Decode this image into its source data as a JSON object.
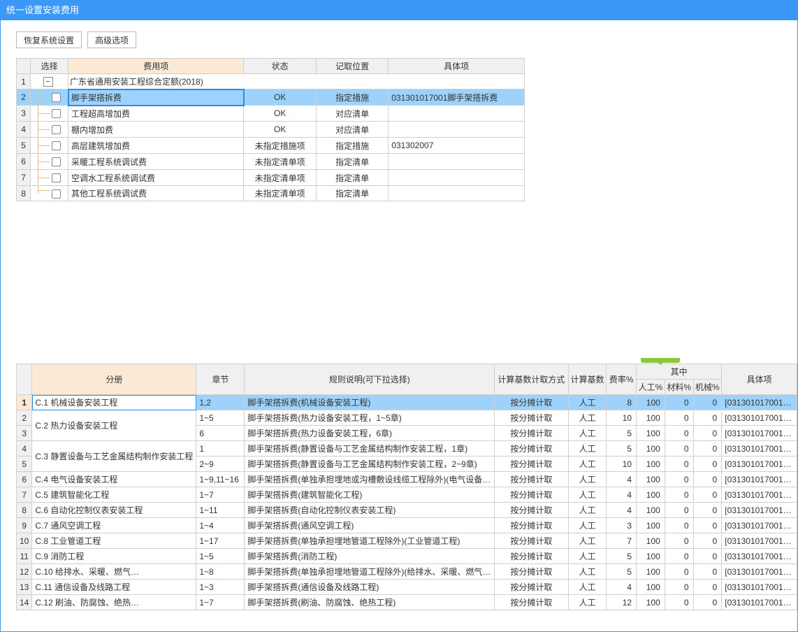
{
  "window": {
    "title": "统一设置安装费用"
  },
  "toolbar": {
    "restore_btn": "恢复系统设置",
    "advanced_btn": "高级选项"
  },
  "topGrid": {
    "headers": {
      "select": "选择",
      "feeItem": "费用项",
      "state": "状态",
      "location": "记取位置",
      "concrete": "具体项"
    },
    "groupLabel": "广东省通用安装工程综合定额(2018)",
    "rows": [
      {
        "n": "2",
        "name": "脚手架搭拆费",
        "state": "OK",
        "loc": "指定措施",
        "concrete": "031301017001脚手架搭拆费",
        "selected": true
      },
      {
        "n": "3",
        "name": "工程超高增加费",
        "state": "OK",
        "loc": "对应清单",
        "concrete": ""
      },
      {
        "n": "4",
        "name": "棚内增加费",
        "state": "OK",
        "loc": "对应清单",
        "concrete": ""
      },
      {
        "n": "5",
        "name": "高层建筑增加费",
        "state": "未指定措施项",
        "loc": "指定措施",
        "concrete": "031302007"
      },
      {
        "n": "6",
        "name": "采暖工程系统调试费",
        "state": "未指定清单项",
        "loc": "指定清单",
        "concrete": ""
      },
      {
        "n": "7",
        "name": "空调水工程系统调试费",
        "state": "未指定清单项",
        "loc": "指定清单",
        "concrete": ""
      },
      {
        "n": "8",
        "name": "其他工程系统调试费",
        "state": "未指定清单项",
        "loc": "指定清单",
        "concrete": ""
      }
    ]
  },
  "bottomGrid": {
    "headers": {
      "volume": "分册",
      "chapter": "章节",
      "rule": "规则说明(可下拉选择)",
      "way": "计算基数计取方式",
      "base": "计算基数",
      "rate": "费率%",
      "of": "其中",
      "labor": "人工%",
      "material": "材料%",
      "machine": "机械%",
      "concrete": "具体项"
    },
    "rows": [
      {
        "n": "1",
        "vol": "C.1 机械设备安装工程",
        "volspan": 1,
        "ch": "1,2",
        "rule": "脚手架搭拆费(机械设备安装工程)",
        "way": "按分摊计取",
        "base": "人工",
        "rate": "8",
        "lab": "100",
        "mat": "0",
        "mac": "0",
        "con": "[031301017001…",
        "selected": true
      },
      {
        "n": "2",
        "vol": "C.2 热力设备安装工程",
        "volspan": 2,
        "ch": "1~5",
        "rule": "脚手架搭拆费(热力设备安装工程，1~5章)",
        "way": "按分摊计取",
        "base": "人工",
        "rate": "10",
        "lab": "100",
        "mat": "0",
        "mac": "0",
        "con": "[031301017001…"
      },
      {
        "n": "3",
        "vol": "",
        "ch": "6",
        "rule": "脚手架搭拆费(热力设备安装工程，6章)",
        "way": "按分摊计取",
        "base": "人工",
        "rate": "5",
        "lab": "100",
        "mat": "0",
        "mac": "0",
        "con": "[031301017001…"
      },
      {
        "n": "4",
        "vol": "C.3 静置设备与工艺金属结构制作安装工程",
        "volspan": 2,
        "ch": "1",
        "rule": "脚手架搭拆费(静置设备与工艺金属结构制作安装工程，1章)",
        "way": "按分摊计取",
        "base": "人工",
        "rate": "5",
        "lab": "100",
        "mat": "0",
        "mac": "0",
        "con": "[031301017001…"
      },
      {
        "n": "5",
        "vol": "",
        "ch": "2~9",
        "rule": "脚手架搭拆费(静置设备与工艺金属结构制作安装工程，2~9章)",
        "way": "按分摊计取",
        "base": "人工",
        "rate": "10",
        "lab": "100",
        "mat": "0",
        "mac": "0",
        "con": "[031301017001…"
      },
      {
        "n": "6",
        "vol": "C.4 电气设备安装工程",
        "volspan": 1,
        "ch": "1~9,11~16",
        "rule": "脚手架搭拆费(单独承担埋地或沟槽敷设线缆工程除外)(电气设备…",
        "way": "按分摊计取",
        "base": "人工",
        "rate": "4",
        "lab": "100",
        "mat": "0",
        "mac": "0",
        "con": "[031301017001…"
      },
      {
        "n": "7",
        "vol": "C.5 建筑智能化工程",
        "volspan": 1,
        "ch": "1~7",
        "rule": "脚手架搭拆费(建筑智能化工程)",
        "way": "按分摊计取",
        "base": "人工",
        "rate": "4",
        "lab": "100",
        "mat": "0",
        "mac": "0",
        "con": "[031301017001…"
      },
      {
        "n": "8",
        "vol": "C.6 自动化控制仪表安装工程",
        "volspan": 1,
        "ch": "1~11",
        "rule": "脚手架搭拆费(自动化控制仪表安装工程)",
        "way": "按分摊计取",
        "base": "人工",
        "rate": "4",
        "lab": "100",
        "mat": "0",
        "mac": "0",
        "con": "[031301017001…"
      },
      {
        "n": "9",
        "vol": "C.7 通风空调工程",
        "volspan": 1,
        "ch": "1~4",
        "rule": "脚手架搭拆费(通风空调工程)",
        "way": "按分摊计取",
        "base": "人工",
        "rate": "3",
        "lab": "100",
        "mat": "0",
        "mac": "0",
        "con": "[031301017001…"
      },
      {
        "n": "10",
        "vol": "C.8 工业管道工程",
        "volspan": 1,
        "ch": "1~17",
        "rule": "脚手架搭拆费(单独承担埋地管道工程除外)(工业管道工程)",
        "way": "按分摊计取",
        "base": "人工",
        "rate": "7",
        "lab": "100",
        "mat": "0",
        "mac": "0",
        "con": "[031301017001…"
      },
      {
        "n": "11",
        "vol": "C.9 消防工程",
        "volspan": 1,
        "ch": "1~5",
        "rule": "脚手架搭拆费(消防工程)",
        "way": "按分摊计取",
        "base": "人工",
        "rate": "5",
        "lab": "100",
        "mat": "0",
        "mac": "0",
        "con": "[031301017001…"
      },
      {
        "n": "12",
        "vol": "C.10 给排水、采暖、燃气…",
        "volspan": 1,
        "ch": "1~8",
        "rule": "脚手架搭拆费(单独承担埋地管道工程除外)(给排水、采暖、燃气…",
        "way": "按分摊计取",
        "base": "人工",
        "rate": "5",
        "lab": "100",
        "mat": "0",
        "mac": "0",
        "con": "[031301017001…"
      },
      {
        "n": "13",
        "vol": "C.11 通信设备及线路工程",
        "volspan": 1,
        "ch": "1~3",
        "rule": "脚手架搭拆费(通信设备及线路工程)",
        "way": "按分摊计取",
        "base": "人工",
        "rate": "4",
        "lab": "100",
        "mat": "0",
        "mac": "0",
        "con": "[031301017001…"
      },
      {
        "n": "14",
        "vol": "C.12 刷油、防腐蚀、绝热…",
        "volspan": 1,
        "ch": "1~7",
        "rule": "脚手架搭拆费(刷油、防腐蚀、绝热工程)",
        "way": "按分摊计取",
        "base": "人工",
        "rate": "12",
        "lab": "100",
        "mat": "0",
        "mac": "0",
        "con": "[031301017001…"
      }
    ]
  }
}
